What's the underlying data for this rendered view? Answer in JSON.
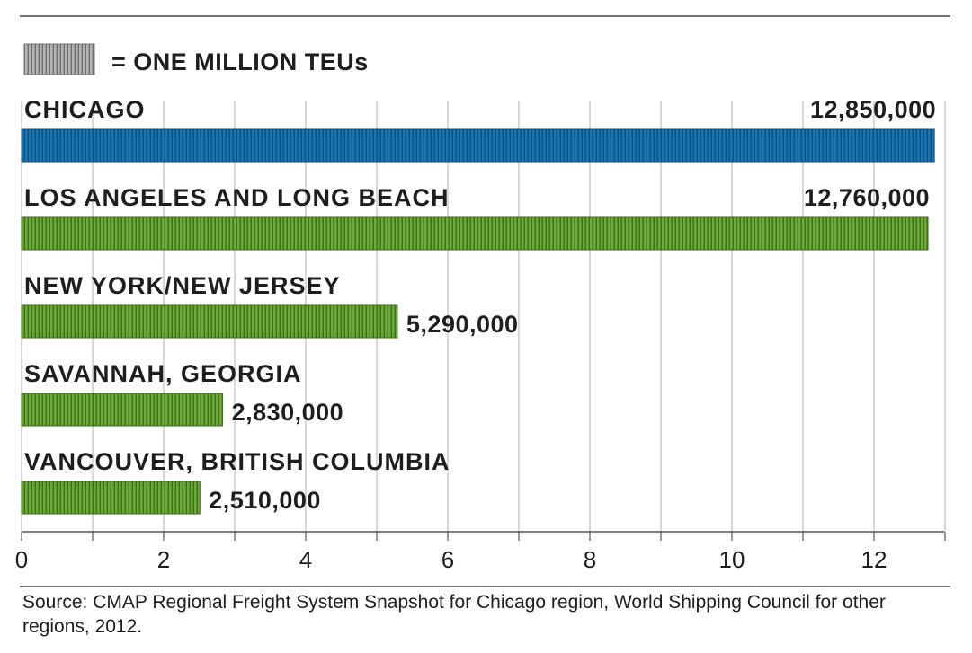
{
  "legend": {
    "label": "= ONE MILLION TEUs",
    "swatch_color": "#999999"
  },
  "source": "Source: CMAP Regional Freight System Snapshot for Chicago region, World Shipping Council for other regions, 2012.",
  "chart_data": {
    "type": "bar",
    "orientation": "horizontal",
    "categories": [
      "CHICAGO",
      "LOS ANGELES AND LONG BEACH",
      "NEW YORK/NEW JERSEY",
      "SAVANNAH, GEORGIA",
      "VANCOUVER, BRITISH COLUMBIA"
    ],
    "values": [
      12.85,
      12.76,
      5.29,
      2.83,
      2.51
    ],
    "value_labels": [
      "12,850,000",
      "12,760,000",
      "5,290,000",
      "2,830,000",
      "2,510,000"
    ],
    "colors": [
      "#1b75b0",
      "#5f9a2e",
      "#5f9a2e",
      "#5f9a2e",
      "#5f9a2e"
    ],
    "x_ticks": [
      0,
      2,
      4,
      6,
      8,
      10,
      12
    ],
    "x_tick_labels": [
      "0",
      "2",
      "4",
      "6",
      "8",
      "10",
      "12"
    ],
    "xlim": [
      0,
      13
    ],
    "grid": true
  }
}
